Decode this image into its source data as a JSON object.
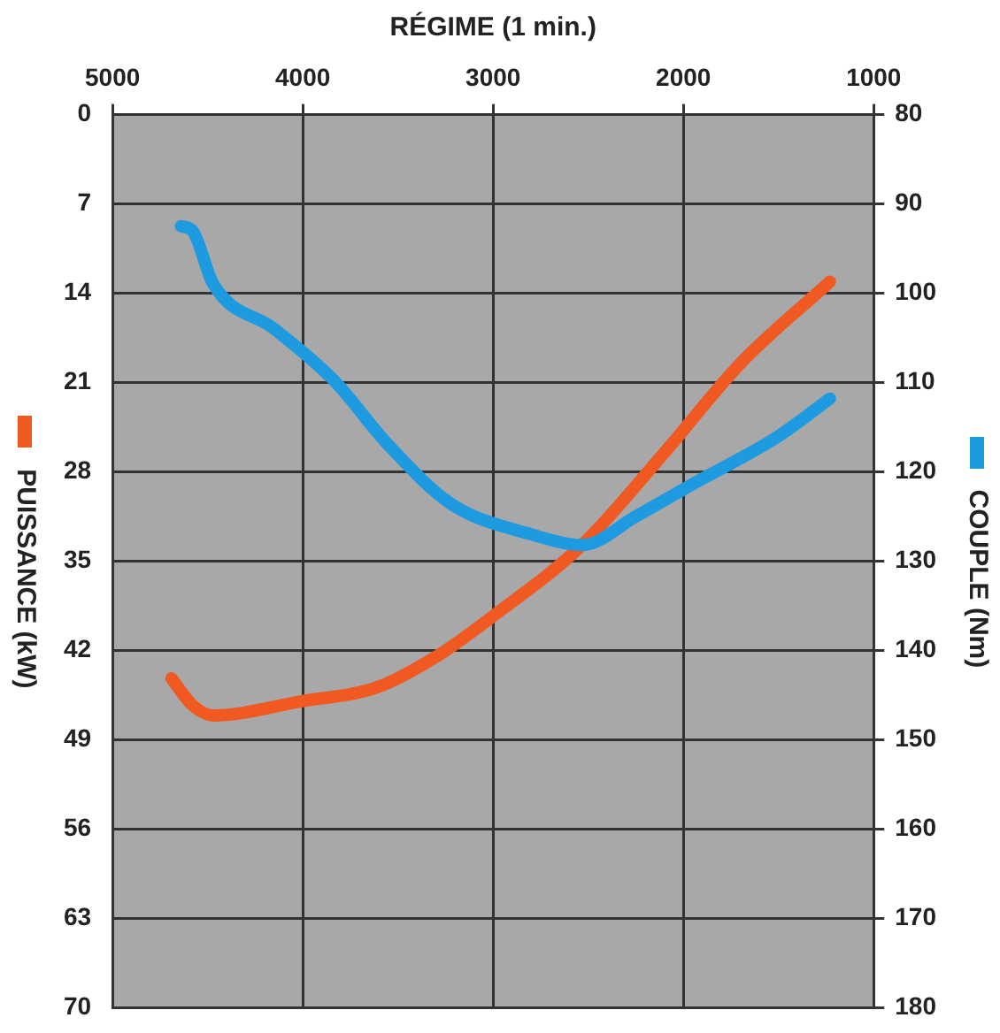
{
  "chart_data": {
    "type": "line",
    "xlabel": "RÉGIME (1 min.)",
    "ylabel": "COUPLE (Nm)",
    "y2label": "PUISSANCE (kW)",
    "xlim": [
      5000,
      1000
    ],
    "xticks": [
      1000,
      2000,
      3000,
      4000,
      5000
    ],
    "ylim": [
      180,
      80
    ],
    "yticks": [
      80,
      90,
      100,
      110,
      120,
      130,
      140,
      150,
      160,
      170,
      180
    ],
    "y2lim": [
      70,
      0
    ],
    "y2ticks": [
      0,
      7,
      14,
      21,
      28,
      35,
      42,
      49,
      56,
      63,
      70
    ],
    "grid": true,
    "marker": "none",
    "line_style": "solid",
    "series": [
      {
        "color": "#1e9be0",
        "x": [
          1230,
          1500,
          1970,
          2250,
          2530,
          2800,
          3220,
          3550,
          3840,
          4150,
          4470,
          4580,
          4640
        ],
        "values": [
          111.8,
          116,
          121.6,
          125,
          128.2,
          127,
          123.6,
          117,
          109.7,
          104,
          99,
          93,
          92.5
        ]
      },
      {
        "color": "#f05a22",
        "axis": "y2",
        "x": [
          1230,
          1700,
          2100,
          2530,
          2990,
          3300,
          3610,
          4010,
          4470,
          4580,
          4690
        ],
        "values": [
          13.1,
          19.5,
          26.5,
          33.7,
          39.2,
          42.5,
          44.9,
          46.0,
          47.1,
          46.3,
          44.2
        ]
      }
    ]
  }
}
